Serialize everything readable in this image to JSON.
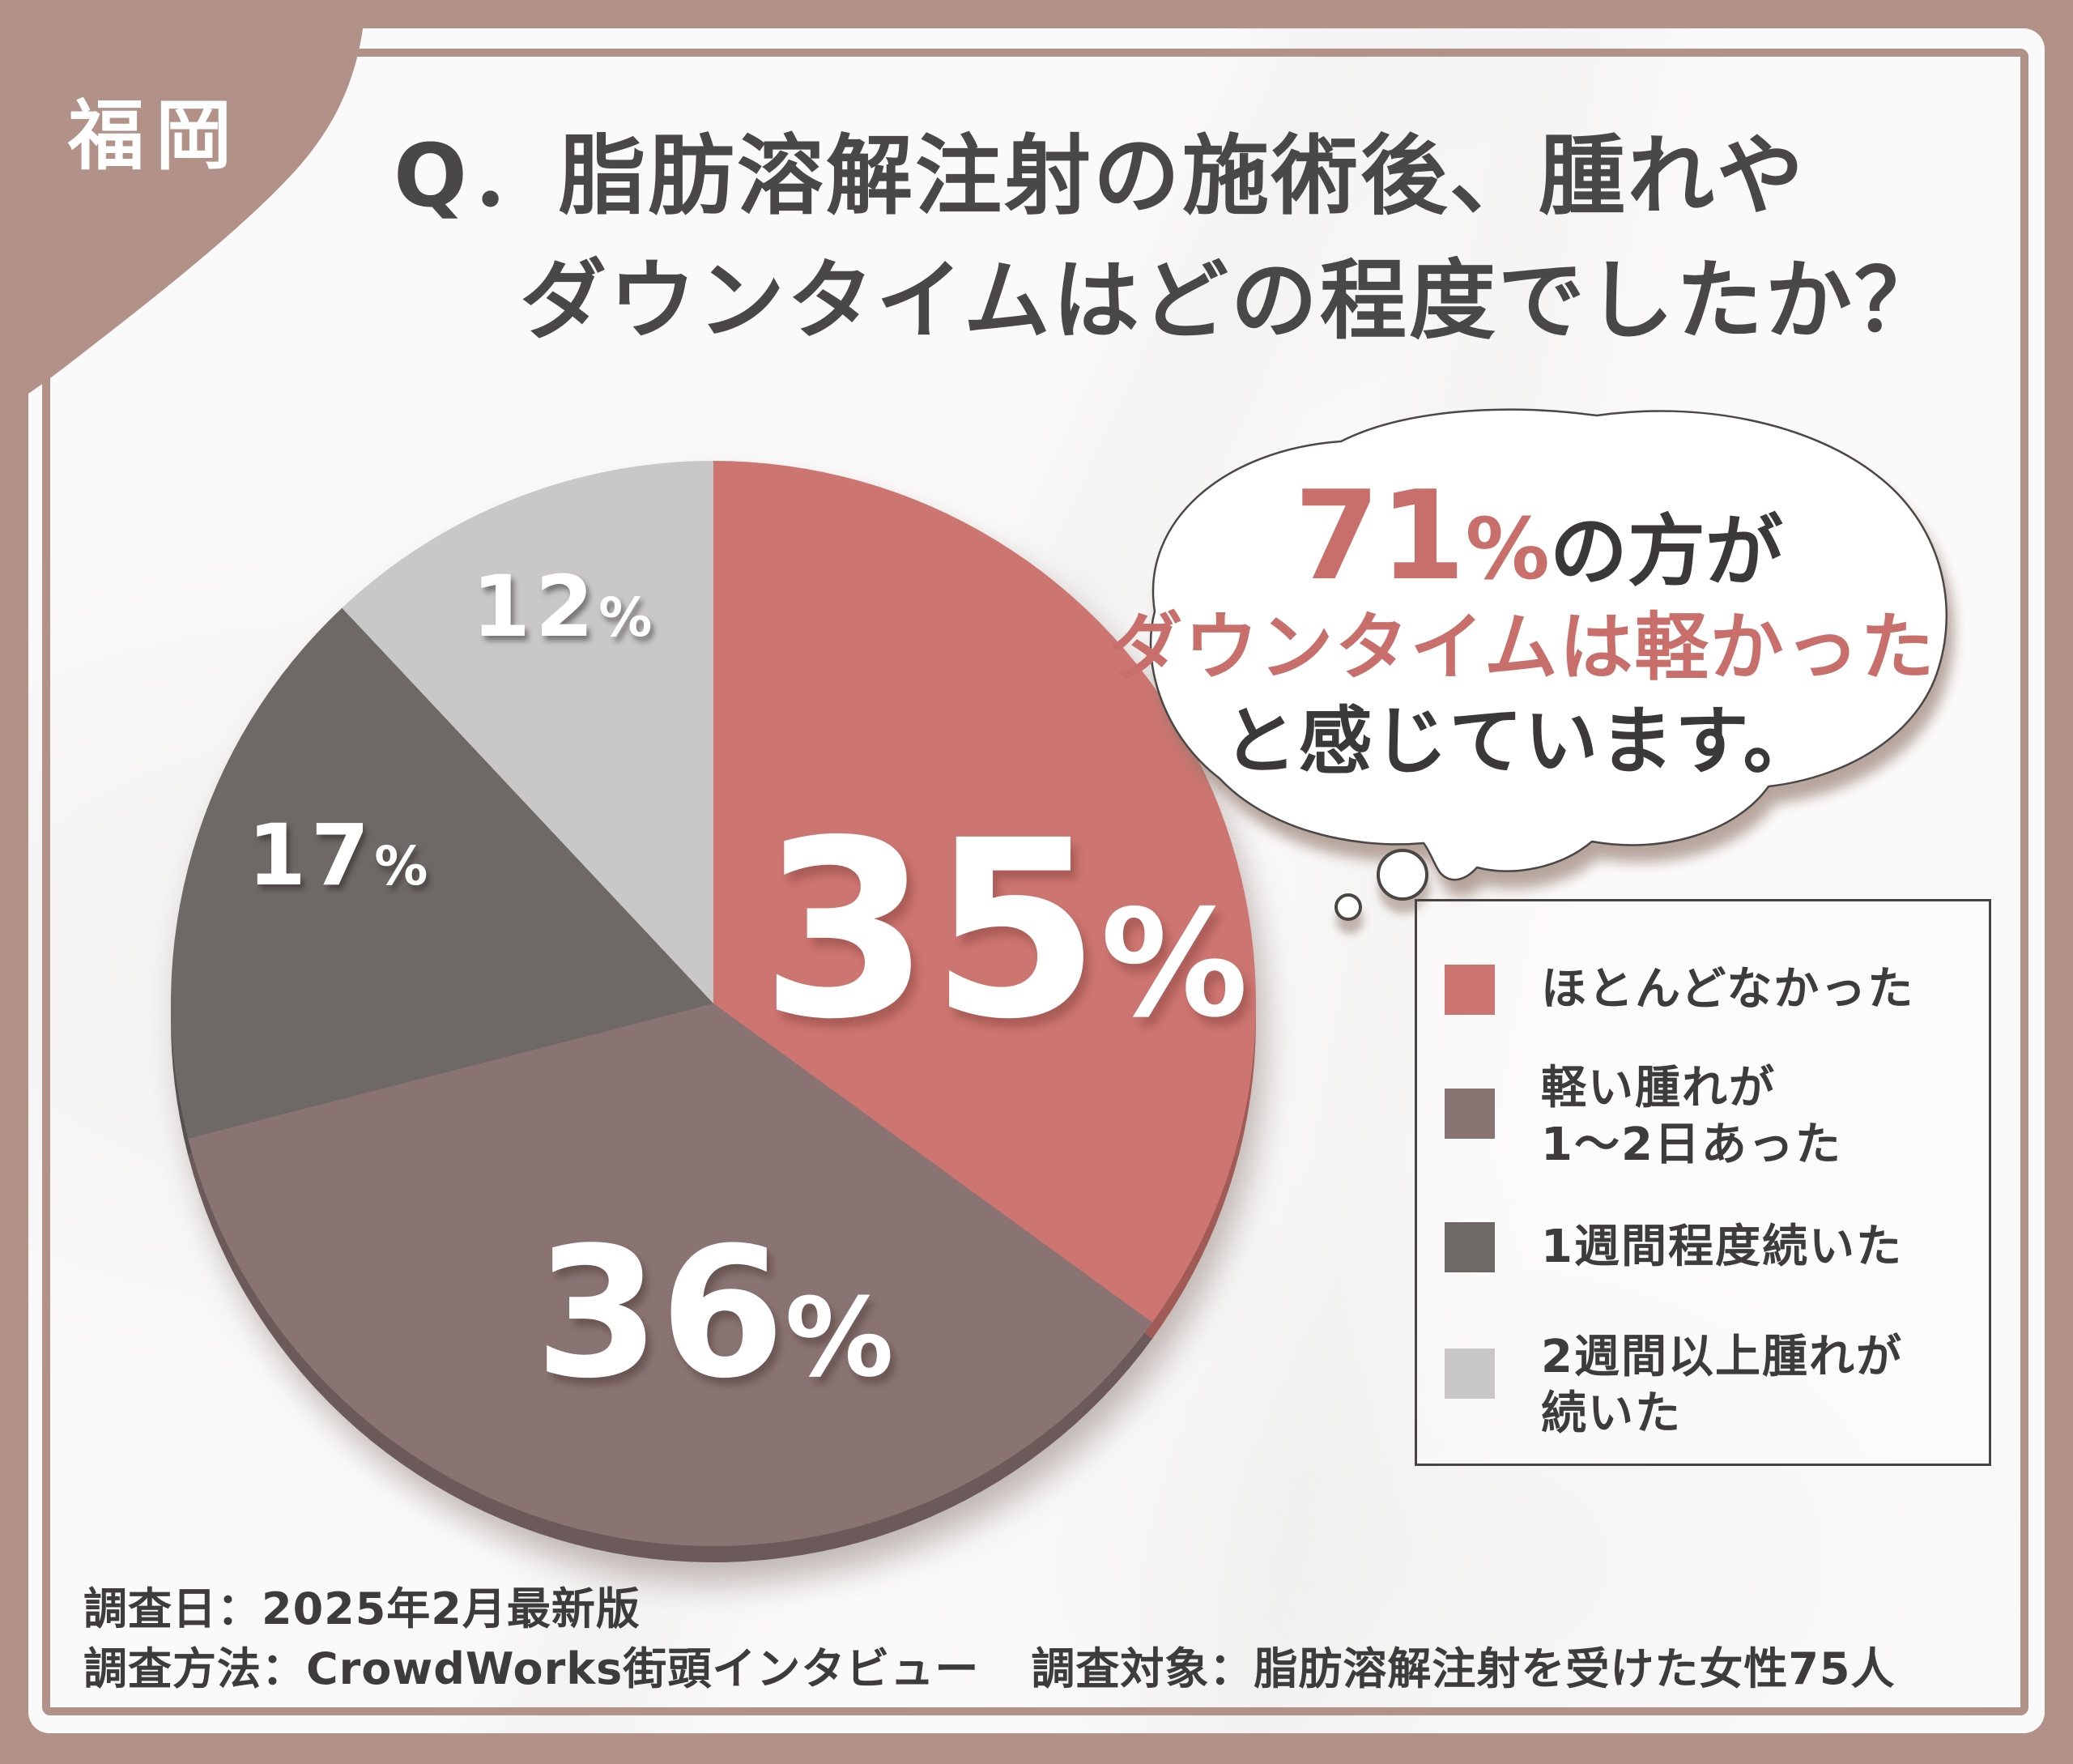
{
  "badge": {
    "label": "福岡"
  },
  "title": {
    "line1": "Q．脂肪溶解注射の施術後、腫れや",
    "line2": "ダウンタイムはどの程度でしたか？"
  },
  "bubble": {
    "stat_value": "71",
    "stat_unit": "%",
    "stat_suffix": "の方が",
    "highlight_line": "ダウンタイムは軽かった",
    "closing_line": "と感じています。"
  },
  "chart_data": {
    "type": "pie",
    "title": "Q．脂肪溶解注射の施術後、腫れやダウンタイムはどの程度でしたか？",
    "categories": [
      "ほとんどなかった",
      "軽い腫れが1〜2日あった",
      "1週間程度続いた",
      "2週間以上腫れが続いた"
    ],
    "values": [
      35,
      36,
      17,
      12
    ],
    "unit": "%",
    "colors": [
      "#cd7570",
      "#8a7473",
      "#6e6866",
      "#c9c7c7"
    ],
    "start_angle_deg": 0,
    "direction": "clockwise",
    "legend_position": "right",
    "annotation": "71%の方がダウンタイムは軽かったと感じています。"
  },
  "legend": {
    "items": [
      {
        "color": "#cd7570",
        "lines": [
          "ほとんどなかった"
        ]
      },
      {
        "color": "#8a7473",
        "lines": [
          "軽い腫れが",
          "1〜2日あった"
        ]
      },
      {
        "color": "#6e6866",
        "lines": [
          "1週間程度続いた"
        ]
      },
      {
        "color": "#c9c7c7",
        "lines": [
          "2週間以上腫れが",
          "続いた"
        ]
      }
    ]
  },
  "footer": {
    "survey_date": "調査日：2025年2月最新版",
    "survey_method": "調査方法：CrowdWorks街頭インタビュー",
    "survey_target": "調査対象：脂肪溶解注射を受けた女性75人"
  },
  "palette": {
    "frame": "#b29189",
    "card": "#fbfafa",
    "accent_red": "#cd7570",
    "text_dark": "#4a4748",
    "bubble_red": "#c96f6b"
  }
}
